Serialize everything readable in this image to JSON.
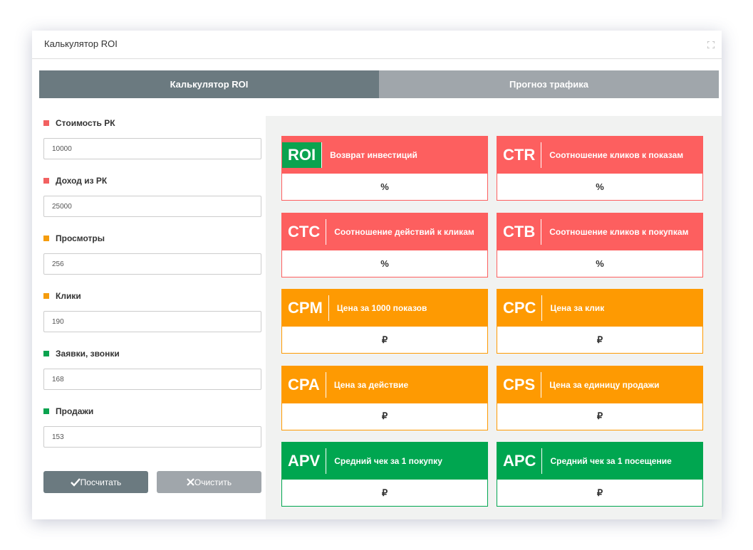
{
  "header": {
    "title": "Калькулятор ROI"
  },
  "tabs": [
    "Калькулятор ROI",
    "Прогноз трафика"
  ],
  "fields": [
    {
      "label": "Стоимость РК",
      "value": "10000",
      "color": "#f26161"
    },
    {
      "label": "Доход из РК",
      "value": "25000",
      "color": "#f26161"
    },
    {
      "label": "Просмотры",
      "value": "256",
      "color": "#f59c0d"
    },
    {
      "label": "Клики",
      "value": "190",
      "color": "#f59c0d"
    },
    {
      "label": "Заявки, звонки",
      "value": "168",
      "color": "#0aa34f"
    },
    {
      "label": "Продажи",
      "value": "153",
      "color": "#0aa34f"
    }
  ],
  "buttons": [
    "Посчитать",
    "Очистить"
  ],
  "metrics": [
    {
      "abbr": "ROI",
      "label": "Возврат инвестиций",
      "unit": "%",
      "color": "#fd5f5f"
    },
    {
      "abbr": "CTR",
      "label": "Соотношение кликов к показам",
      "unit": "%",
      "color": "#fd5f5f"
    },
    {
      "abbr": "CTC",
      "label": "Соотношение действий к кликам",
      "unit": "%",
      "color": "#fd5f5f"
    },
    {
      "abbr": "CTB",
      "label": "Соотношение кликов к покупкам",
      "unit": "%",
      "color": "#fd5f5f"
    },
    {
      "abbr": "CPM",
      "label": "Цена за 1000 показов",
      "unit": "₽",
      "color": "#fe9a02"
    },
    {
      "abbr": "CPC",
      "label": "Цена за клик",
      "unit": "₽",
      "color": "#fe9a02"
    },
    {
      "abbr": "CPA",
      "label": "Цена за действие",
      "unit": "₽",
      "color": "#fe9a02"
    },
    {
      "abbr": "CPS",
      "label": "Цена за единицу продажи",
      "unit": "₽",
      "color": "#fe9a02"
    },
    {
      "abbr": "APV",
      "label": "Средний чек за 1 покупку",
      "unit": "₽",
      "color": "#00a650"
    },
    {
      "abbr": "APC",
      "label": "Средний чек за 1 посещение",
      "unit": "₽",
      "color": "#00a650"
    }
  ]
}
